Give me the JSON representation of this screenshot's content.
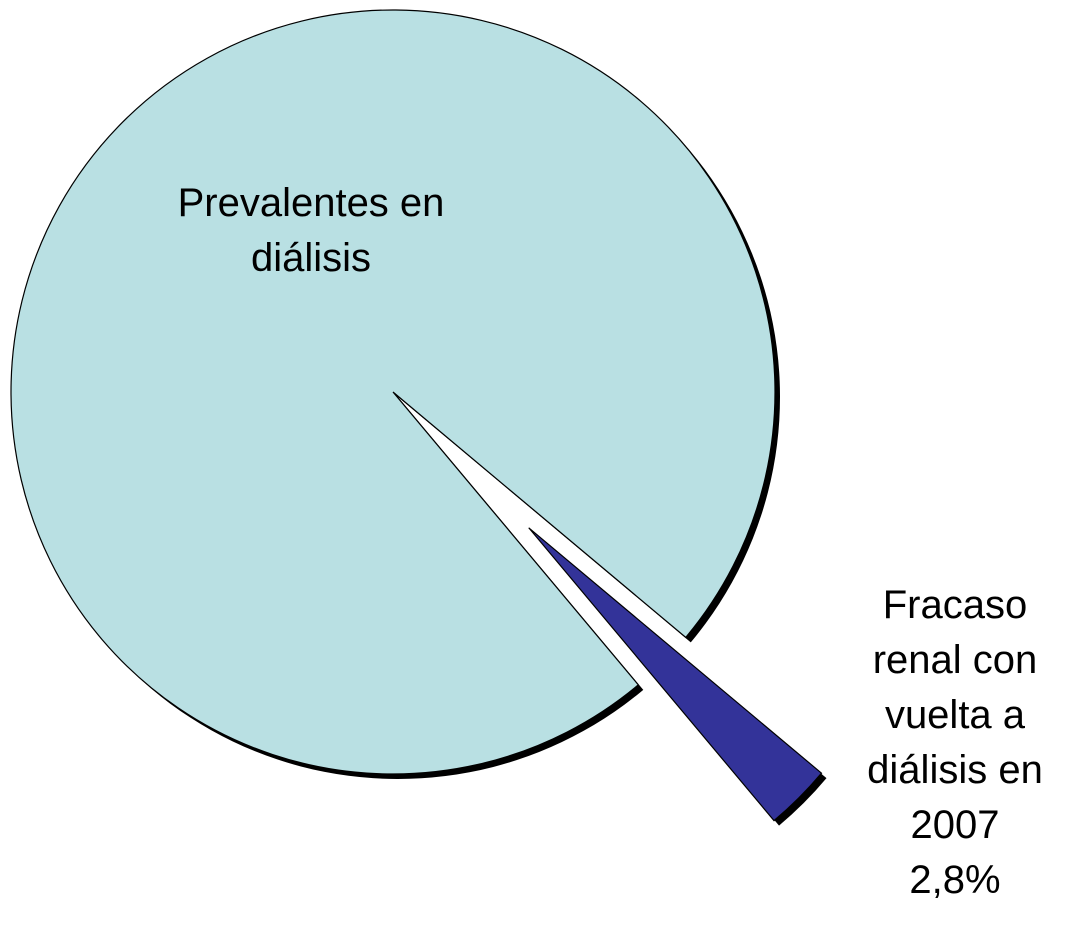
{
  "chart_data": {
    "type": "pie",
    "categories": [
      "Prevalentes en diálisis",
      "Fracaso renal con vuelta a diálisis en 2007"
    ],
    "values": [
      97.2,
      2.8
    ],
    "value_labels": [
      null,
      "2,8%"
    ],
    "colors": [
      "#b9e0e3",
      "#333399"
    ]
  }
}
